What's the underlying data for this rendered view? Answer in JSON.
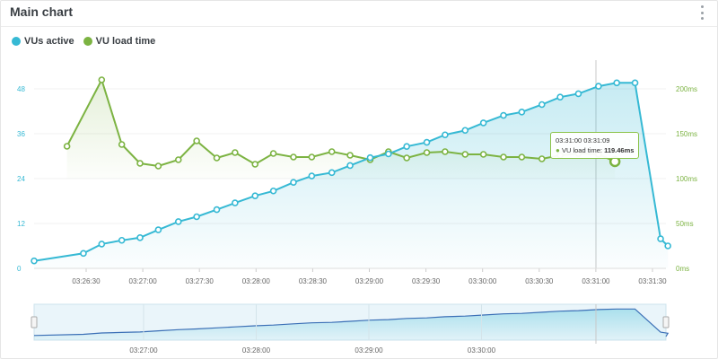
{
  "header": {
    "title": "Main chart"
  },
  "legend": [
    {
      "label": "VUs active",
      "color": "#36b9d4"
    },
    {
      "label": "VU load time",
      "color": "#7cb342"
    }
  ],
  "tooltip": {
    "time": "03:31:00 03:31:09",
    "series": "VU load time:",
    "value": "119.46ms"
  },
  "chart_data": {
    "type": "line",
    "x_axis": {
      "ticks": [
        "03:26:30",
        "03:27:00",
        "03:27:30",
        "03:28:00",
        "03:28:30",
        "03:29:00",
        "03:29:30",
        "03:30:00",
        "03:30:30",
        "03:31:00",
        "03:31:30"
      ]
    },
    "y_axis_left": {
      "ticks": [
        "0",
        "12",
        "24",
        "36",
        "48"
      ],
      "ylim": [
        0,
        60
      ]
    },
    "y_axis_right": {
      "ticks": [
        "0ms",
        "50ms",
        "100ms",
        "150ms",
        "200ms"
      ],
      "ylim": [
        0,
        250
      ]
    },
    "x_seconds_range": [
      0,
      345
    ],
    "series": [
      {
        "name": "VUs active",
        "color": "#36b9d4",
        "points": [
          [
            0,
            2
          ],
          [
            27,
            4
          ],
          [
            37,
            6.5
          ],
          [
            48,
            7.5
          ],
          [
            58,
            8.2
          ],
          [
            68,
            10.3
          ],
          [
            79,
            12.5
          ],
          [
            89,
            13.8
          ],
          [
            100,
            15.7
          ],
          [
            110,
            17.5
          ],
          [
            121,
            19.4
          ],
          [
            131,
            20.7
          ],
          [
            142,
            23
          ],
          [
            152,
            24.7
          ],
          [
            163,
            25.6
          ],
          [
            173,
            27.5
          ],
          [
            184,
            29.6
          ],
          [
            194,
            30.6
          ],
          [
            204,
            32.6
          ],
          [
            215,
            33.7
          ],
          [
            225,
            35.7
          ],
          [
            236,
            36.9
          ],
          [
            246,
            38.9
          ],
          [
            257,
            40.9
          ],
          [
            267,
            41.8
          ],
          [
            278,
            43.8
          ],
          [
            288,
            45.8
          ],
          [
            298,
            46.7
          ],
          [
            309,
            48.7
          ],
          [
            319,
            49.6
          ],
          [
            329,
            49.6
          ],
          [
            343,
            7.9
          ],
          [
            347,
            6
          ]
        ]
      },
      {
        "name": "VU load time",
        "color": "#7cb342",
        "points": [
          [
            18,
            136
          ],
          [
            37,
            210
          ],
          [
            48,
            138
          ],
          [
            58,
            117
          ],
          [
            68,
            114
          ],
          [
            79,
            121
          ],
          [
            89,
            142
          ],
          [
            100,
            123
          ],
          [
            110,
            129
          ],
          [
            121,
            116
          ],
          [
            131,
            128
          ],
          [
            142,
            124
          ],
          [
            152,
            124
          ],
          [
            163,
            130
          ],
          [
            173,
            126
          ],
          [
            184,
            121
          ],
          [
            194,
            130
          ],
          [
            204,
            123
          ],
          [
            215,
            129
          ],
          [
            225,
            130
          ],
          [
            236,
            127
          ],
          [
            246,
            127
          ],
          [
            257,
            124
          ],
          [
            267,
            124
          ],
          [
            278,
            122
          ],
          [
            288,
            126
          ],
          [
            298,
            128
          ],
          [
            309,
            127
          ],
          [
            318,
            119
          ]
        ]
      }
    ]
  },
  "navigator": {
    "ticks": [
      "03:27:00",
      "03:28:00",
      "03:29:00",
      "03:30:00"
    ]
  }
}
